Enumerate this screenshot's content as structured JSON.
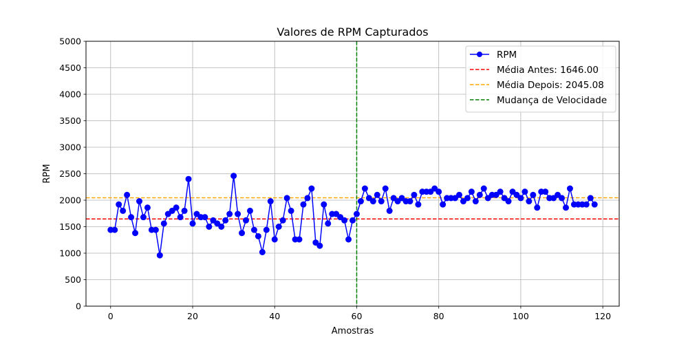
{
  "chart_data": {
    "type": "line",
    "title": "Valores de RPM Capturados",
    "xlabel": "Amostras",
    "ylabel": "RPM",
    "xlim": [
      -6,
      124
    ],
    "ylim": [
      0,
      5000
    ],
    "xticks": [
      0,
      20,
      40,
      60,
      80,
      100,
      120
    ],
    "yticks": [
      0,
      500,
      1000,
      1500,
      2000,
      2500,
      3000,
      3500,
      4000,
      4500,
      5000
    ],
    "grid": true,
    "legend_position": "top-right",
    "series": [
      {
        "name": "RPM",
        "color": "#0000ff",
        "marker": "circle",
        "x": [
          0,
          1,
          2,
          3,
          4,
          5,
          6,
          7,
          8,
          9,
          10,
          11,
          12,
          13,
          14,
          15,
          16,
          17,
          18,
          19,
          20,
          21,
          22,
          23,
          24,
          25,
          26,
          27,
          28,
          29,
          30,
          31,
          32,
          33,
          34,
          35,
          36,
          37,
          38,
          39,
          40,
          41,
          42,
          43,
          44,
          45,
          46,
          47,
          48,
          49,
          50,
          51,
          52,
          53,
          54,
          55,
          56,
          57,
          58,
          59,
          60,
          61,
          62,
          63,
          64,
          65,
          66,
          67,
          68,
          69,
          70,
          71,
          72,
          73,
          74,
          75,
          76,
          77,
          78,
          79,
          80,
          81,
          82,
          83,
          84,
          85,
          86,
          87,
          88,
          89,
          90,
          91,
          92,
          93,
          94,
          95,
          96,
          97,
          98,
          99,
          100,
          101,
          102,
          103,
          104,
          105,
          106,
          107,
          108,
          109,
          110,
          111,
          112,
          113,
          114,
          115,
          116,
          117,
          118
        ],
        "values": [
          1440,
          1440,
          1920,
          1800,
          2100,
          1680,
          1380,
          1980,
          1680,
          1860,
          1440,
          1440,
          960,
          1560,
          1740,
          1800,
          1860,
          1680,
          1800,
          2400,
          1560,
          1740,
          1680,
          1680,
          1500,
          1620,
          1560,
          1500,
          1620,
          1740,
          2460,
          1740,
          1380,
          1620,
          1800,
          1440,
          1320,
          1020,
          1440,
          1980,
          1260,
          1500,
          1620,
          2040,
          1800,
          1260,
          1260,
          1920,
          2040,
          2220,
          1200,
          1140,
          1920,
          1560,
          1740,
          1740,
          1680,
          1620,
          1260,
          1620,
          1740,
          1980,
          2220,
          2040,
          1980,
          2100,
          1980,
          2220,
          1800,
          2040,
          1980,
          2040,
          1980,
          1980,
          2100,
          1920,
          2160,
          2160,
          2160,
          2220,
          2160,
          1920,
          2040,
          2040,
          2040,
          2100,
          1980,
          2040,
          2160,
          1980,
          2100,
          2220,
          2040,
          2100,
          2100,
          2160,
          2040,
          1980,
          2160,
          2100,
          2040,
          2160,
          1980,
          2100,
          1860,
          2160,
          2160,
          2040,
          2040,
          2100,
          2040,
          1860,
          2220,
          1920,
          1920,
          1920,
          1920,
          2040,
          1920
        ]
      }
    ],
    "hlines": [
      {
        "name": "Média Antes: 1646.00",
        "y": 1646.0,
        "color": "#ff0000",
        "style": "dashed"
      },
      {
        "name": "Média Depois: 2045.08",
        "y": 2045.08,
        "color": "#ffa500",
        "style": "dashed"
      }
    ],
    "vlines": [
      {
        "name": "Mudança de Velocidade",
        "x": 60,
        "color": "#008000",
        "style": "dashed"
      }
    ]
  }
}
